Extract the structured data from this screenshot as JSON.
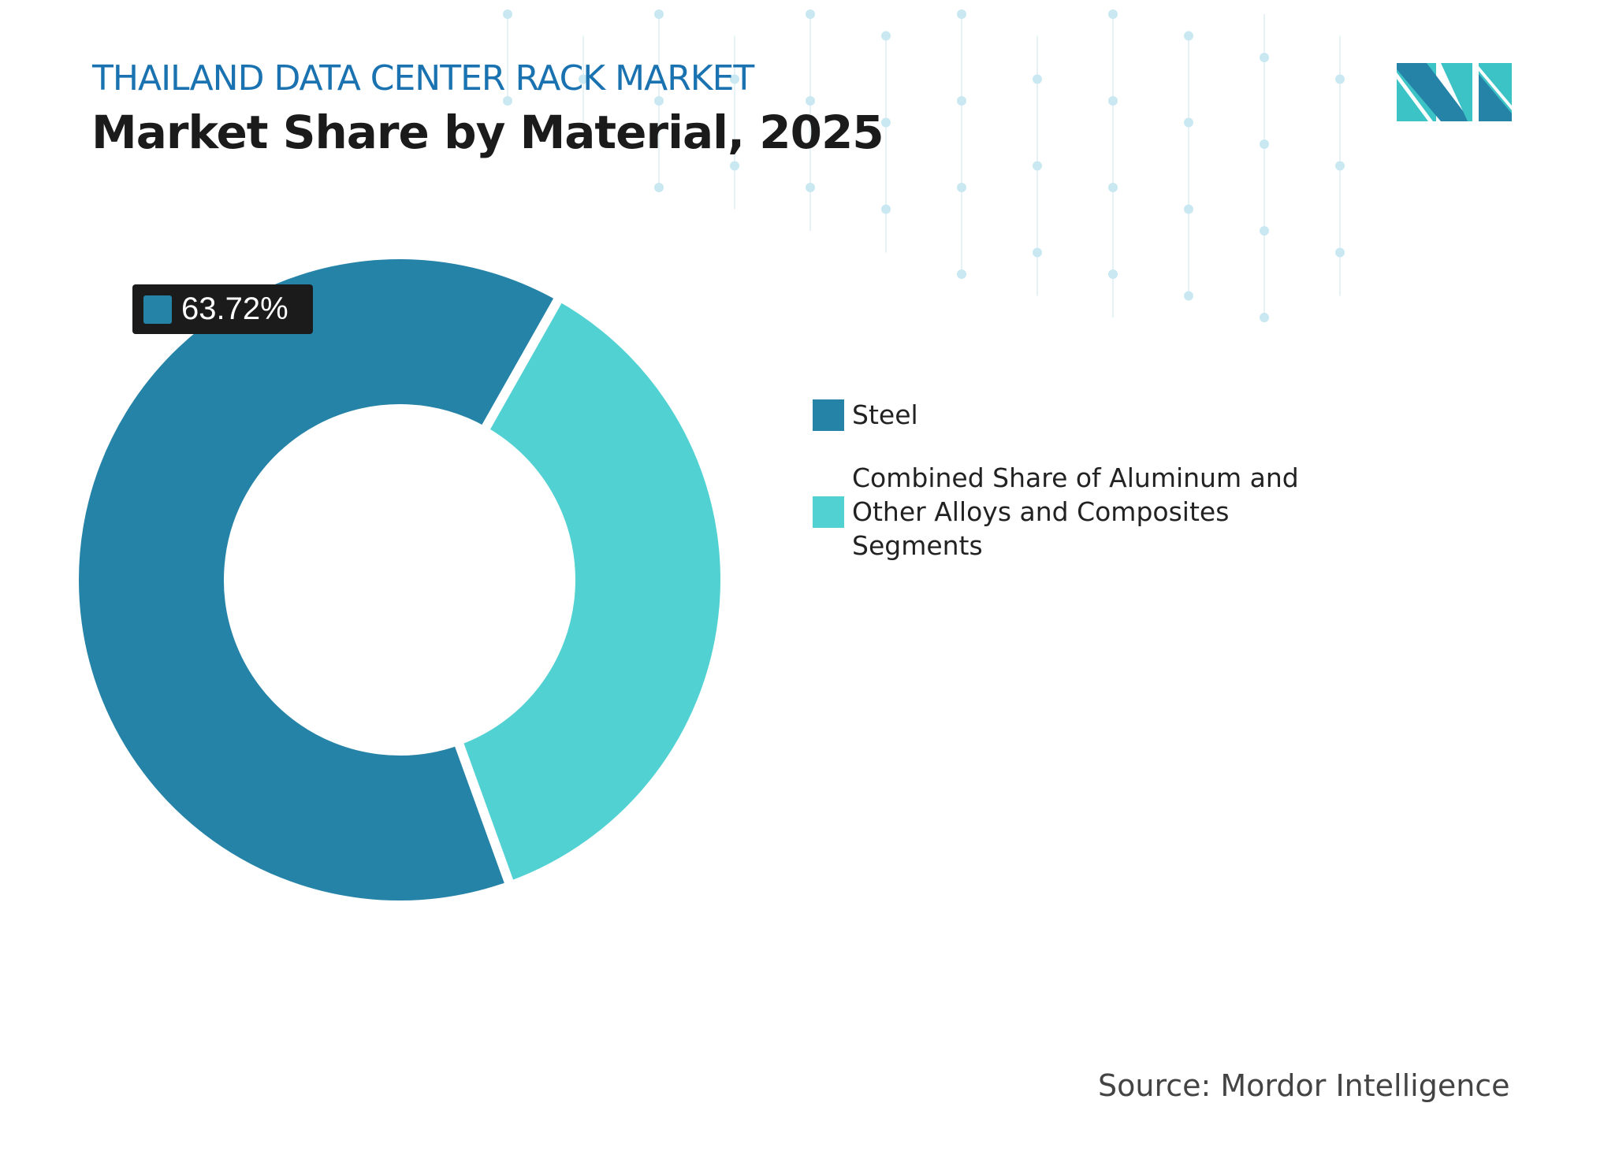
{
  "header": {
    "subtitle": "THAILAND DATA CENTER RACK MARKET",
    "title": "Market Share by Material, 2025"
  },
  "source": "Source: Mordor Intelligence",
  "logo": {
    "name": "mordor-intelligence-logo",
    "colors": [
      "#2683a8",
      "#3cc3c6"
    ]
  },
  "chart_data": {
    "type": "pie",
    "donut": true,
    "title": "Market Share by Material, 2025",
    "series": [
      {
        "name": "Steel",
        "value": 63.72,
        "color": "#2683a8"
      },
      {
        "name": "Combined Share of Aluminum and Other Alloys and Composites Segments",
        "value": 36.28,
        "color": "#52d1d3"
      }
    ],
    "data_labels": [
      {
        "series": "Steel",
        "text": "63.72%"
      }
    ],
    "legend_placement": "right"
  }
}
